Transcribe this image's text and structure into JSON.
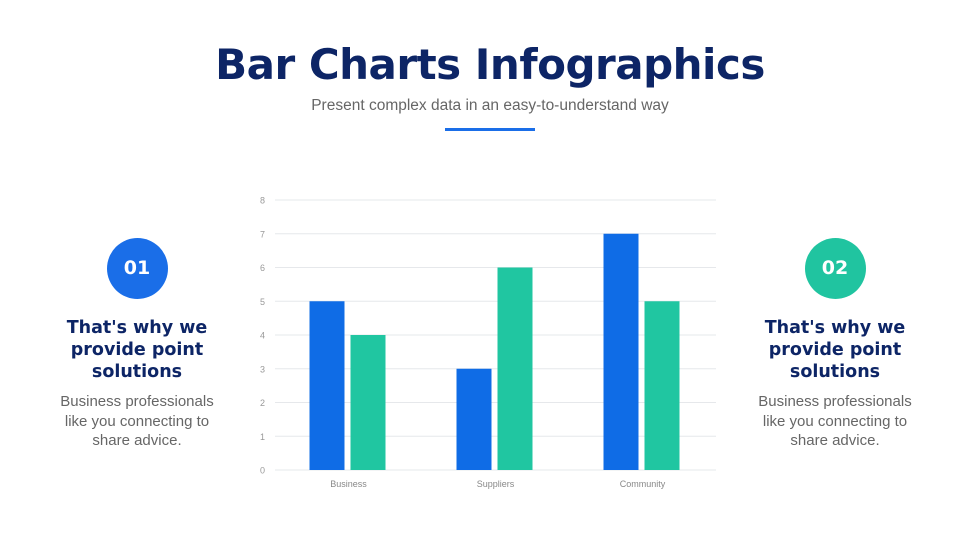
{
  "header": {
    "title": "Bar Charts Infographics",
    "subtitle": "Present complex data in an easy-to-understand way"
  },
  "left": {
    "number": "01",
    "heading": "That's why we provide point solutions",
    "text": "Business professionals like you connecting to share advice.",
    "color": "#1a6ee8"
  },
  "right": {
    "number": "02",
    "heading": "That's why we provide point solutions",
    "text": "Business professionals like you connecting to share advice.",
    "color": "#20c4a0"
  },
  "chart_data": {
    "type": "bar",
    "categories": [
      "Business",
      "Suppliers",
      "Community"
    ],
    "series": [
      {
        "values": [
          5,
          3,
          7
        ],
        "color": "#0f6ce6"
      },
      {
        "values": [
          4,
          6,
          5
        ],
        "color": "#20c6a1"
      }
    ],
    "ylim": [
      0,
      8
    ],
    "yticks": [
      0,
      1,
      2,
      3,
      4,
      5,
      6,
      7,
      8
    ],
    "grid": true,
    "title": "",
    "xlabel": "",
    "ylabel": ""
  }
}
